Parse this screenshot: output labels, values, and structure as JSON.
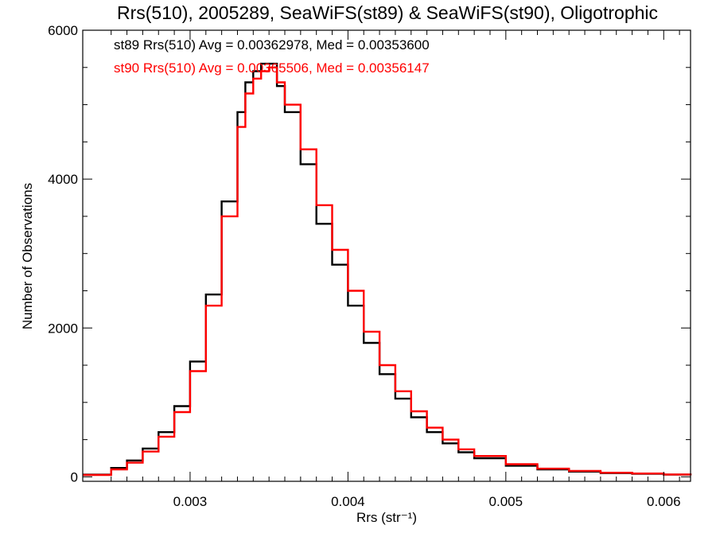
{
  "chart_data": {
    "type": "line",
    "title": "Rrs(510), 2005289, SeaWiFS(st89) & SeaWiFS(st90), Oligotrophic",
    "xlabel": "Rrs (str⁻¹)",
    "ylabel": "Number of Observations",
    "xlim": [
      0.00232,
      0.00617
    ],
    "ylim": [
      -60,
      6000
    ],
    "xticks": [
      0.003,
      0.004,
      0.005,
      0.006
    ],
    "xtick_labels": [
      "0.003",
      "0.004",
      "0.005",
      "0.006"
    ],
    "yticks": [
      0,
      2000,
      4000,
      6000
    ],
    "ytick_labels": [
      "0",
      "2000",
      "4000",
      "6000"
    ],
    "grid": false,
    "annotations": [
      {
        "text": "st89 Rrs(510) Avg = 0.00362978, Med = 0.00353600",
        "color": "#000000"
      },
      {
        "text": "st90 Rrs(510) Avg = 0.00365506, Med = 0.00356147",
        "color": "#ff0000"
      }
    ],
    "series": [
      {
        "color": "#000000",
        "x": [
          0.00232,
          0.0025,
          0.0026,
          0.0027,
          0.0028,
          0.0029,
          0.003,
          0.0031,
          0.0032,
          0.0033,
          0.00335,
          0.0034,
          0.00345,
          0.0035,
          0.00355,
          0.0036,
          0.0037,
          0.0038,
          0.0039,
          0.004,
          0.0041,
          0.0042,
          0.0043,
          0.0044,
          0.0045,
          0.0046,
          0.0047,
          0.0048,
          0.005,
          0.0052,
          0.0054,
          0.0056,
          0.0058,
          0.006,
          0.00617
        ],
        "y": [
          30,
          120,
          220,
          380,
          600,
          950,
          1550,
          2450,
          3700,
          4900,
          5300,
          5450,
          5550,
          5550,
          5250,
          4900,
          4200,
          3400,
          2850,
          2300,
          1800,
          1380,
          1050,
          800,
          600,
          450,
          330,
          250,
          150,
          100,
          70,
          50,
          40,
          30,
          20
        ]
      },
      {
        "color": "#ff0000",
        "x": [
          0.00232,
          0.0025,
          0.0026,
          0.0027,
          0.0028,
          0.0029,
          0.003,
          0.0031,
          0.0032,
          0.0033,
          0.00335,
          0.0034,
          0.00345,
          0.0035,
          0.00355,
          0.0036,
          0.0037,
          0.0038,
          0.0039,
          0.004,
          0.0041,
          0.0042,
          0.0043,
          0.0044,
          0.0045,
          0.0046,
          0.0047,
          0.0048,
          0.005,
          0.0052,
          0.0054,
          0.0056,
          0.0058,
          0.006,
          0.00617
        ],
        "y": [
          25,
          100,
          190,
          340,
          540,
          870,
          1420,
          2300,
          3500,
          4700,
          5150,
          5350,
          5450,
          5500,
          5300,
          5000,
          4400,
          3650,
          3050,
          2500,
          1950,
          1500,
          1150,
          880,
          660,
          500,
          370,
          280,
          170,
          110,
          80,
          55,
          45,
          32,
          20
        ]
      }
    ]
  }
}
